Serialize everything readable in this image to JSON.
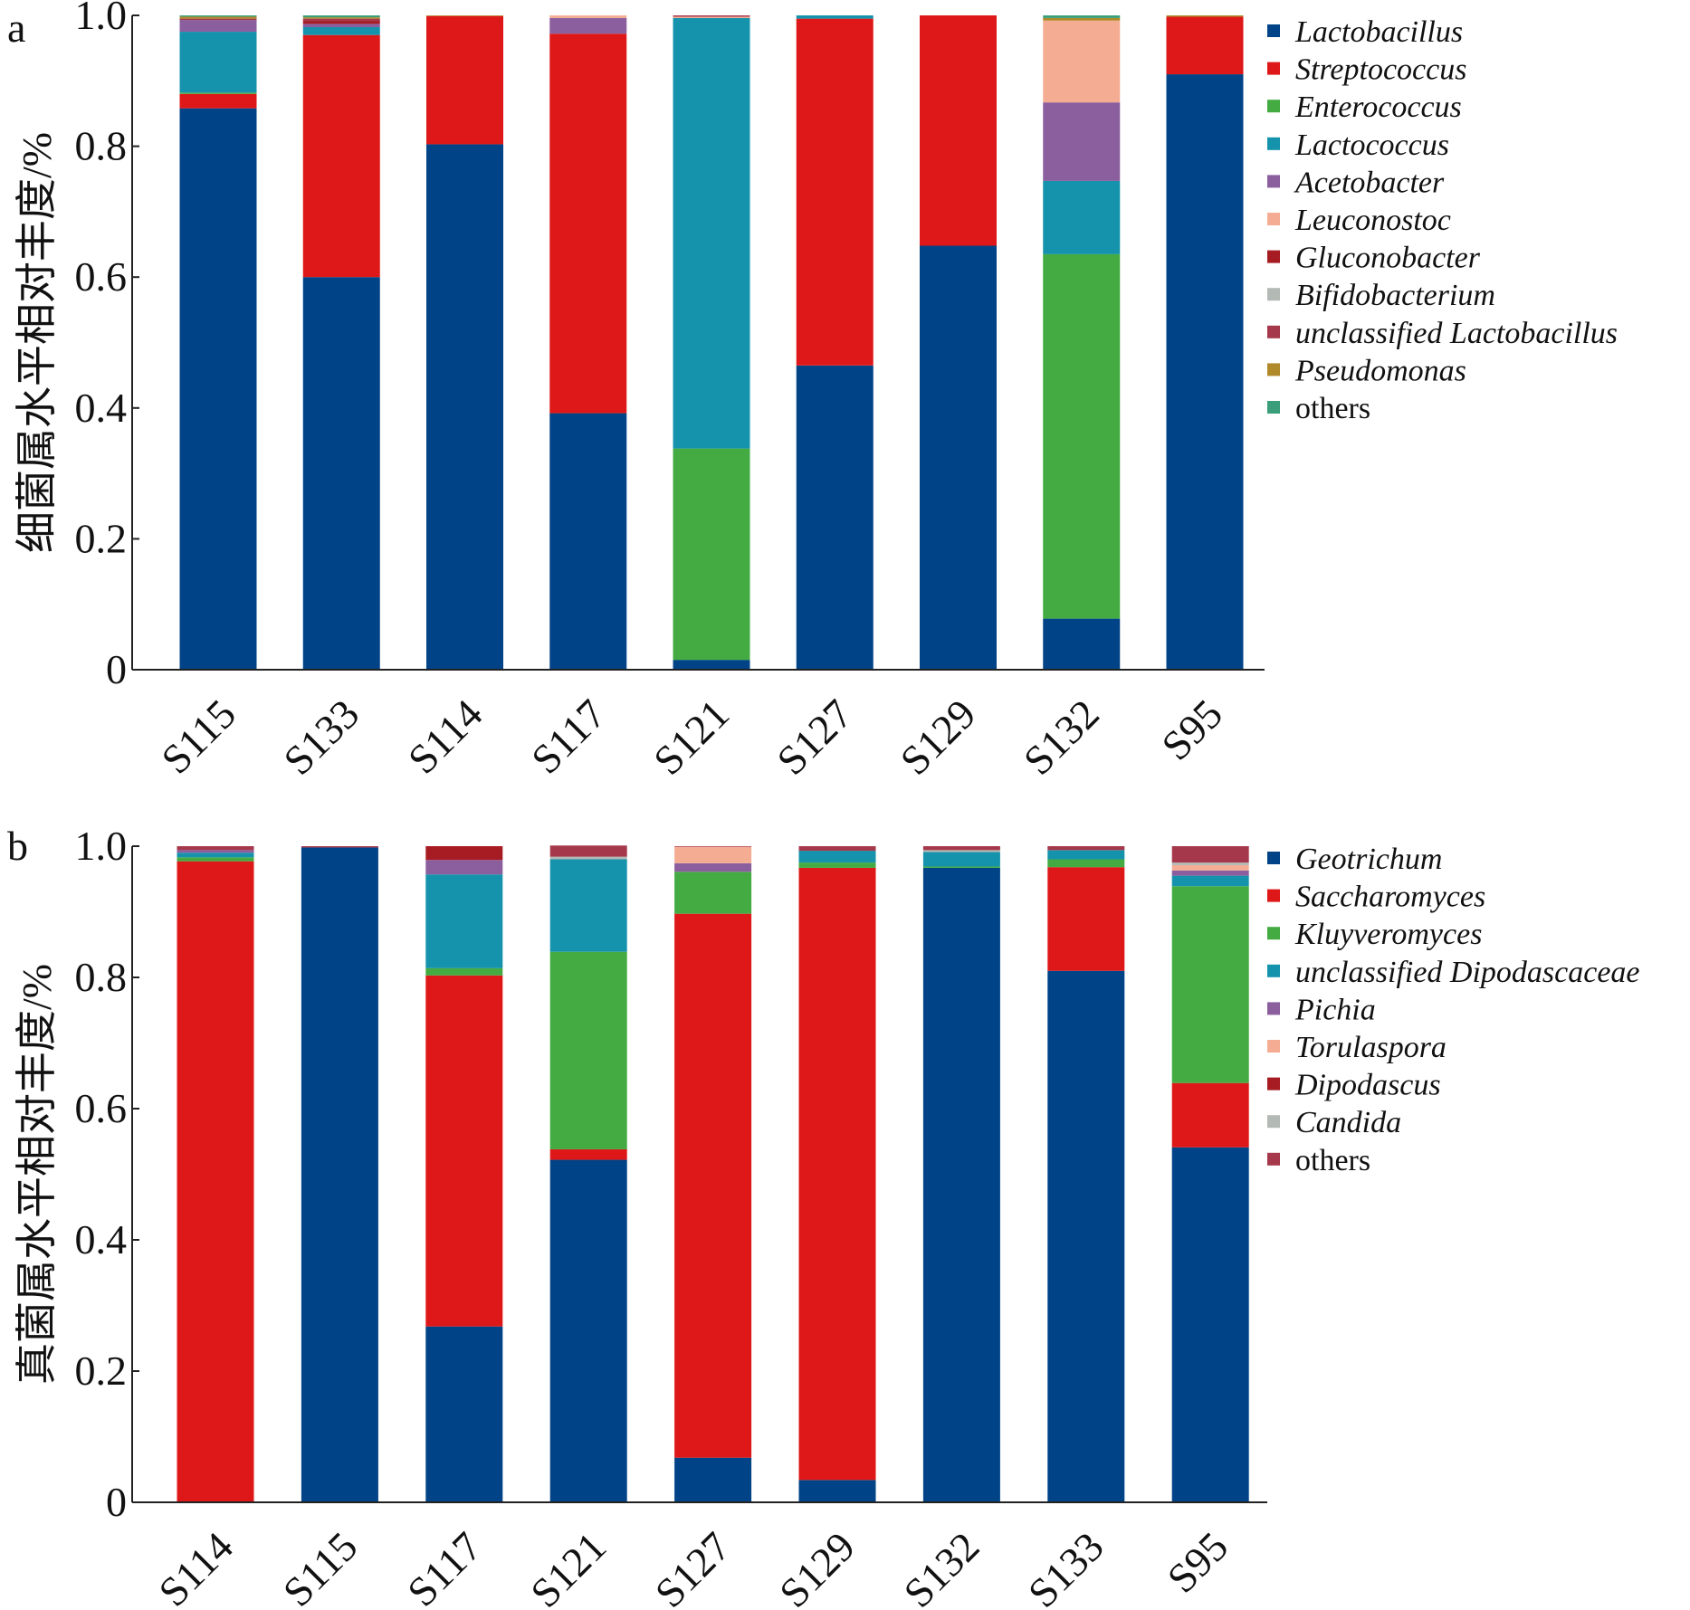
{
  "chart_data": [
    {
      "type": "bar",
      "stacked": true,
      "panel_label": "a",
      "ylabel": "细菌属水平相对丰度/%",
      "ylim": [
        0,
        1.0
      ],
      "yticks": [
        0,
        0.2,
        0.4,
        0.6,
        0.8,
        1.0
      ],
      "ytick_labels": [
        "0",
        "0.2",
        "0.4",
        "0.6",
        "0.8",
        "1.0"
      ],
      "legend_position": "right",
      "categories": [
        "S115",
        "S133",
        "S114",
        "S117",
        "S121",
        "S127",
        "S129",
        "S132",
        "S95"
      ],
      "series": [
        {
          "name": "Lactobacillus",
          "italic": true,
          "color": "#004386",
          "values": [
            0.858,
            0.6,
            0.803,
            0.392,
            0.015,
            0.465,
            0.648,
            0.078,
            0.91
          ]
        },
        {
          "name": "Streptococcus",
          "italic": true,
          "color": "#de1818",
          "values": [
            0.022,
            0.37,
            0.196,
            0.58,
            0.0,
            0.53,
            0.352,
            0.0,
            0.088
          ]
        },
        {
          "name": "Enterococcus",
          "italic": true,
          "color": "#43ab42",
          "values": [
            0.002,
            0.0,
            0.0,
            0.0,
            0.323,
            0.0,
            0.0,
            0.557,
            0.0
          ]
        },
        {
          "name": "Lactococcus",
          "italic": true,
          "color": "#1693ac",
          "values": [
            0.093,
            0.012,
            0.0,
            0.0,
            0.658,
            0.005,
            0.0,
            0.112,
            0.0
          ]
        },
        {
          "name": "Acetobacter",
          "italic": true,
          "color": "#8b5e9e",
          "values": [
            0.018,
            0.005,
            0.0,
            0.024,
            0.0,
            0.0,
            0.0,
            0.12,
            0.0
          ]
        },
        {
          "name": "Leuconostoc",
          "italic": true,
          "color": "#f4ad93",
          "values": [
            0.0,
            0.0,
            0.0,
            0.004,
            0.002,
            0.0,
            0.0,
            0.125,
            0.0
          ]
        },
        {
          "name": "Gluconobacter",
          "italic": true,
          "color": "#a61c22",
          "values": [
            0.0,
            0.004,
            0.0,
            0.0,
            0.0,
            0.0,
            0.0,
            0.0,
            0.0
          ]
        },
        {
          "name": "Bifidobacterium",
          "italic": true,
          "color": "#b3b9b5",
          "values": [
            0.0,
            0.0,
            0.0,
            0.0,
            0.0,
            0.0,
            0.0,
            0.0,
            0.0
          ]
        },
        {
          "name": "unclassified Lactobacillus",
          "italic": true,
          "color": "#a5384a",
          "values": [
            0.002,
            0.004,
            0.0,
            0.0,
            0.002,
            0.0,
            0.0,
            0.0,
            0.0
          ]
        },
        {
          "name": "Pseudomonas",
          "italic": true,
          "color": "#b0892a",
          "values": [
            0.003,
            0.002,
            0.001,
            0.0,
            0.0,
            0.0,
            0.0,
            0.004,
            0.002
          ]
        },
        {
          "name": "others",
          "italic": false,
          "color": "#3a9e7a",
          "values": [
            0.002,
            0.003,
            0.0,
            0.0,
            0.0,
            0.0,
            0.0,
            0.004,
            0.0
          ]
        }
      ]
    },
    {
      "type": "bar",
      "stacked": true,
      "panel_label": "b",
      "ylabel": "真菌属水平相对丰度/%",
      "ylim": [
        0,
        1.0
      ],
      "yticks": [
        0,
        0.2,
        0.4,
        0.6,
        0.8,
        1.0
      ],
      "ytick_labels": [
        "0",
        "0.2",
        "0.4",
        "0.6",
        "0.8",
        "1.0"
      ],
      "legend_position": "right",
      "categories": [
        "S114",
        "S115",
        "S117",
        "S121",
        "S127",
        "S129",
        "S132",
        "S133",
        "S95"
      ],
      "series": [
        {
          "name": "Geotrichum",
          "italic": true,
          "color": "#004386",
          "values": [
            0.0,
            0.998,
            0.268,
            0.522,
            0.068,
            0.034,
            0.967,
            0.81,
            0.541
          ]
        },
        {
          "name": "Saccharomyces",
          "italic": true,
          "color": "#de1818",
          "values": [
            0.977,
            0.0,
            0.535,
            0.016,
            0.829,
            0.933,
            0.0,
            0.158,
            0.098
          ]
        },
        {
          "name": "Kluyveromyces",
          "italic": true,
          "color": "#43ab42",
          "values": [
            0.006,
            0.0,
            0.011,
            0.301,
            0.064,
            0.008,
            0.002,
            0.012,
            0.3
          ]
        },
        {
          "name": "unclassified Dipodascaceae",
          "italic": true,
          "color": "#1693ac",
          "values": [
            0.007,
            0.0,
            0.143,
            0.141,
            0.0,
            0.018,
            0.022,
            0.014,
            0.016
          ]
        },
        {
          "name": "Pichia",
          "italic": true,
          "color": "#8b5e9e",
          "values": [
            0.004,
            0.0,
            0.022,
            0.0,
            0.013,
            0.0,
            0.0,
            0.0,
            0.008
          ]
        },
        {
          "name": "Torulaspora",
          "italic": true,
          "color": "#f4ad93",
          "values": [
            0.0,
            0.0,
            0.0,
            0.0,
            0.025,
            0.0,
            0.0,
            0.0,
            0.008
          ]
        },
        {
          "name": "Dipodascus",
          "italic": true,
          "color": "#a61c22",
          "values": [
            0.0,
            0.0,
            0.021,
            0.0,
            0.0,
            0.0,
            0.0,
            0.0,
            0.0
          ]
        },
        {
          "name": "Candida",
          "italic": true,
          "color": "#b3b9b5",
          "values": [
            0.0,
            0.0,
            0.0,
            0.004,
            0.0,
            0.0,
            0.003,
            0.0,
            0.004
          ]
        },
        {
          "name": "others",
          "italic": false,
          "color": "#a5384a",
          "values": [
            0.006,
            0.002,
            0.0,
            0.017,
            0.001,
            0.007,
            0.006,
            0.006,
            0.025
          ]
        }
      ]
    }
  ]
}
